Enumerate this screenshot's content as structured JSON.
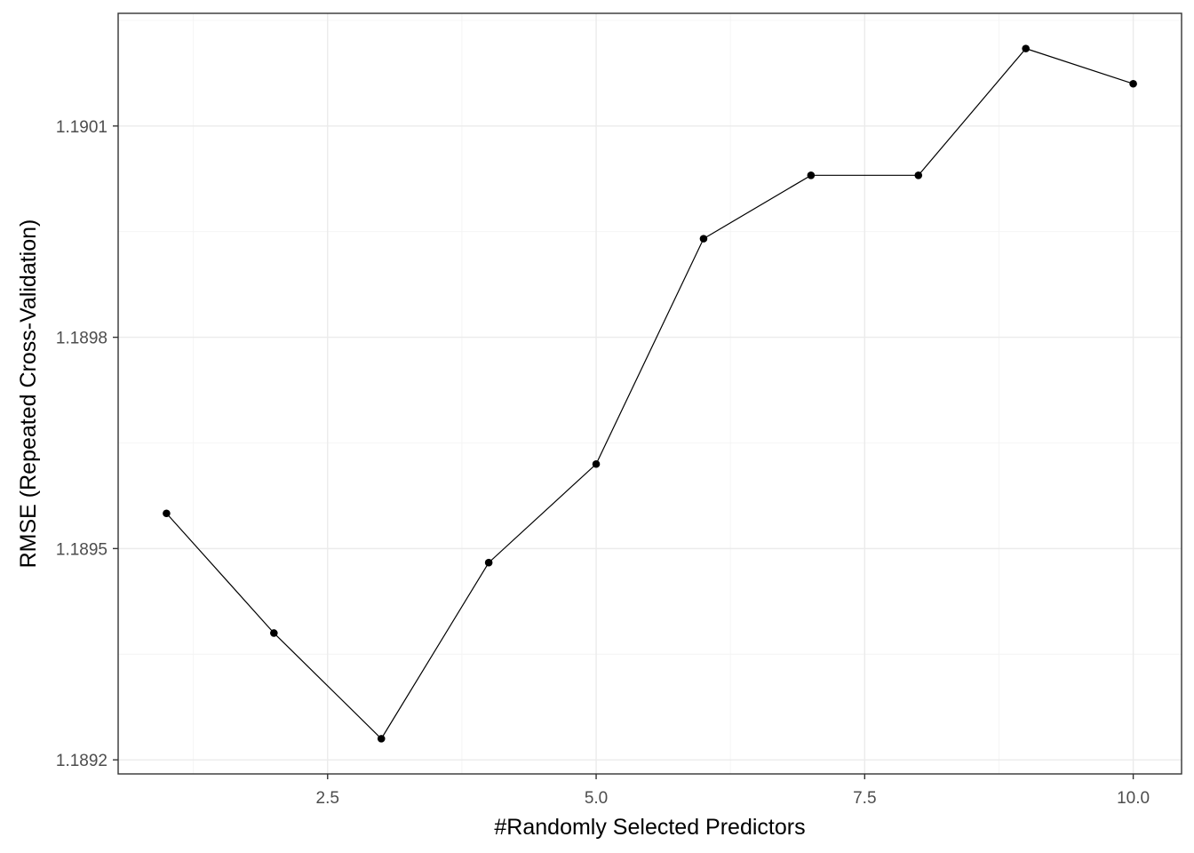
{
  "chart_data": {
    "type": "line",
    "title": "",
    "xlabel": "#Randomly Selected Predictors",
    "ylabel": "RMSE (Repeated Cross-Validation)",
    "x": [
      1,
      2,
      3,
      4,
      5,
      6,
      7,
      8,
      9,
      10
    ],
    "series": [
      {
        "values": [
          1.18955,
          1.18938,
          1.18923,
          1.18948,
          1.18962,
          1.18994,
          1.19003,
          1.19003,
          1.19021,
          1.19016
        ]
      }
    ],
    "xlim": [
      0.55,
      10.45
    ],
    "ylim": [
      1.18918,
      1.19026
    ],
    "x_ticks": [
      2.5,
      5.0,
      7.5,
      10.0
    ],
    "x_tick_labels": [
      "2.5",
      "5.0",
      "7.5",
      "10.0"
    ],
    "y_ticks": [
      1.1892,
      1.1895,
      1.1898,
      1.1901
    ],
    "y_tick_labels": [
      "1.1892",
      "1.1895",
      "1.1898",
      "1.1901"
    ],
    "grid": true,
    "colors": {
      "line": "#000000",
      "point": "#000000",
      "grid": "#ebebeb",
      "border": "#333333"
    }
  }
}
